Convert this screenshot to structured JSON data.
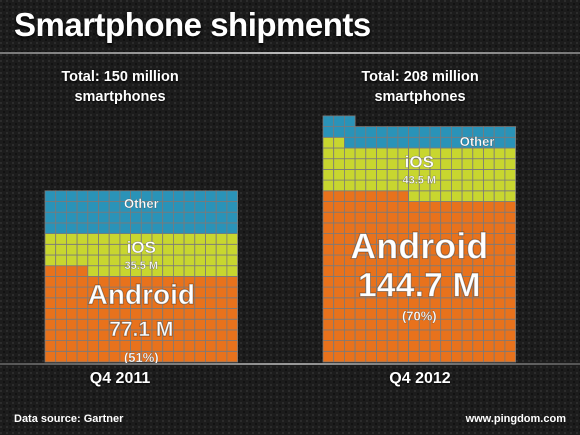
{
  "header": {
    "title": "Smartphone shipments"
  },
  "footer": {
    "source": "Data source: Gartner",
    "site": "www.pingdom.com"
  },
  "colors": {
    "android": "#e8721c",
    "ios": "#c8d62f",
    "other": "#2a93b8",
    "grid_line": "#7a7a7a"
  },
  "chart_data": [
    {
      "type": "bar",
      "category": "Q4 2011",
      "total_text": "Total: 150 million smartphones",
      "total_millions": 150,
      "segments": [
        {
          "name": "Android",
          "value": 77.1,
          "value_label": "77.1 M",
          "share_label": "(51%)"
        },
        {
          "name": "iOS",
          "value": 35.5,
          "value_label": "35.5 M",
          "share_label": ""
        },
        {
          "name": "Other",
          "value": 37.4,
          "value_label": "",
          "share_label": ""
        }
      ]
    },
    {
      "type": "bar",
      "category": "Q4 2012",
      "total_text": "Total: 208 million smartphones",
      "total_millions": 208,
      "segments": [
        {
          "name": "Android",
          "value": 144.7,
          "value_label": "144.7 M",
          "share_label": "(70%)"
        },
        {
          "name": "iOS",
          "value": 43.5,
          "value_label": "43.5 M",
          "share_label": ""
        },
        {
          "name": "Other",
          "value": 19.8,
          "value_label": "",
          "share_label": ""
        }
      ]
    }
  ]
}
